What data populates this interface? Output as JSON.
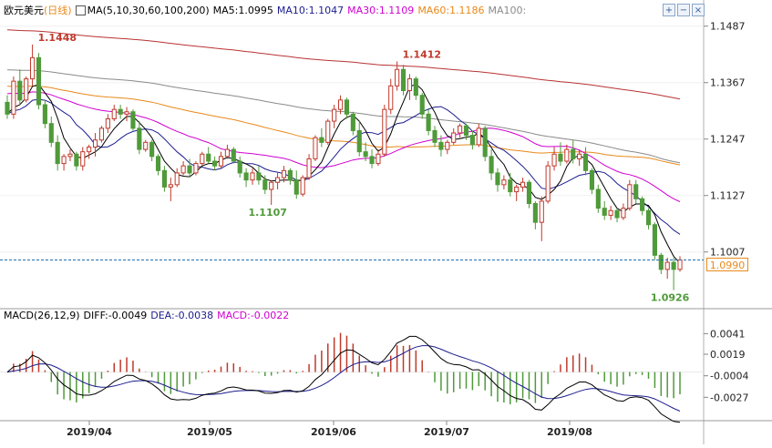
{
  "header": {
    "symbol": "欧元美元",
    "period": "(日线)",
    "ma_label": "MA(5,10,30,60,100,200)",
    "ma5": "MA5:1.0995",
    "ma10": "MA10:1.1047",
    "ma30": "MA30:1.1109",
    "ma60": "MA60:1.1186",
    "ma100": "MA100:"
  },
  "macd_header": {
    "label": "MACD(26,12,9)",
    "diff": "DIFF:-0.0049",
    "dea": "DEA:-0.0038",
    "macd": "MACD:-0.0022"
  },
  "toolbar": {
    "plus": "+",
    "minus": "−",
    "close": "×"
  },
  "current_price": "1.0990",
  "colors": {
    "up": "#c0392b",
    "down": "#4f9a3a",
    "ma5": "#000000",
    "ma10": "#1d1d8f",
    "ma30": "#d000d0",
    "ma60": "#e8891a",
    "ma100": "#8a8a8a",
    "ma200": "#b83232",
    "diff": "#000000",
    "dea": "#1d1d8f"
  },
  "chart_data": [
    {
      "type": "candlestick",
      "title": "欧元美元(日线)",
      "x_labels": [
        "2019/04",
        "2019/05",
        "2019/06",
        "2019/07",
        "2019/08"
      ],
      "y_ticks": [
        "1.1487",
        "1.1367",
        "1.1247",
        "1.1127",
        "1.1007"
      ],
      "ylim": [
        1.09,
        1.15
      ],
      "annotations": [
        {
          "label": "1.1448",
          "value": 1.1448,
          "kind": "high"
        },
        {
          "label": "1.1107",
          "value": 1.1107,
          "kind": "low"
        },
        {
          "label": "1.1412",
          "value": 1.1412,
          "kind": "high"
        },
        {
          "label": "1.0926",
          "value": 1.0926,
          "kind": "low"
        }
      ],
      "candles": [
        [
          1.1325,
          1.134,
          1.129,
          1.13
        ],
        [
          1.13,
          1.138,
          1.129,
          1.137
        ],
        [
          1.137,
          1.1395,
          1.132,
          1.133
        ],
        [
          1.133,
          1.138,
          1.1325,
          1.1375
        ],
        [
          1.1375,
          1.1448,
          1.136,
          1.142
        ],
        [
          1.142,
          1.143,
          1.131,
          1.132
        ],
        [
          1.132,
          1.133,
          1.127,
          1.128
        ],
        [
          1.128,
          1.1295,
          1.123,
          1.124
        ],
        [
          1.124,
          1.1255,
          1.118,
          1.1195
        ],
        [
          1.1195,
          1.1215,
          1.118,
          1.121
        ],
        [
          1.121,
          1.1225,
          1.12,
          1.1215
        ],
        [
          1.1215,
          1.122,
          1.118,
          1.119
        ],
        [
          1.119,
          1.123,
          1.118,
          1.122
        ],
        [
          1.122,
          1.1235,
          1.1205,
          1.123
        ],
        [
          1.123,
          1.126,
          1.121,
          1.1245
        ],
        [
          1.1245,
          1.1275,
          1.124,
          1.127
        ],
        [
          1.127,
          1.13,
          1.126,
          1.129
        ],
        [
          1.129,
          1.132,
          1.1285,
          1.131
        ],
        [
          1.131,
          1.132,
          1.129,
          1.13
        ],
        [
          1.13,
          1.1315,
          1.1285,
          1.1305
        ],
        [
          1.1305,
          1.131,
          1.1265,
          1.127
        ],
        [
          1.127,
          1.1285,
          1.1215,
          1.1225
        ],
        [
          1.1225,
          1.1245,
          1.122,
          1.124
        ],
        [
          1.124,
          1.1245,
          1.12,
          1.121
        ],
        [
          1.121,
          1.1215,
          1.117,
          1.118
        ],
        [
          1.118,
          1.119,
          1.1135,
          1.1145
        ],
        [
          1.1145,
          1.1165,
          1.1115,
          1.115
        ],
        [
          1.115,
          1.1185,
          1.1145,
          1.1175
        ],
        [
          1.1175,
          1.12,
          1.117,
          1.119
        ],
        [
          1.119,
          1.1205,
          1.1165,
          1.1175
        ],
        [
          1.1175,
          1.12,
          1.117,
          1.1195
        ],
        [
          1.1195,
          1.122,
          1.119,
          1.1215
        ],
        [
          1.1215,
          1.123,
          1.1195,
          1.12
        ],
        [
          1.12,
          1.121,
          1.118,
          1.119
        ],
        [
          1.119,
          1.122,
          1.1185,
          1.121
        ],
        [
          1.121,
          1.1235,
          1.1205,
          1.1225
        ],
        [
          1.1225,
          1.123,
          1.1195,
          1.12
        ],
        [
          1.12,
          1.121,
          1.1165,
          1.1175
        ],
        [
          1.1175,
          1.1185,
          1.1145,
          1.116
        ],
        [
          1.116,
          1.1185,
          1.115,
          1.1175
        ],
        [
          1.1175,
          1.119,
          1.115,
          1.116
        ],
        [
          1.116,
          1.117,
          1.113,
          1.114
        ],
        [
          1.114,
          1.116,
          1.1107,
          1.1155
        ],
        [
          1.1155,
          1.1175,
          1.114,
          1.1165
        ],
        [
          1.1165,
          1.119,
          1.1155,
          1.118
        ],
        [
          1.118,
          1.1185,
          1.115,
          1.116
        ],
        [
          1.116,
          1.118,
          1.112,
          1.113
        ],
        [
          1.113,
          1.117,
          1.1125,
          1.1165
        ],
        [
          1.1165,
          1.1215,
          1.116,
          1.1205
        ],
        [
          1.1205,
          1.1255,
          1.12,
          1.125
        ],
        [
          1.125,
          1.127,
          1.123,
          1.124
        ],
        [
          1.124,
          1.129,
          1.1235,
          1.1285
        ],
        [
          1.1285,
          1.132,
          1.127,
          1.131
        ],
        [
          1.131,
          1.134,
          1.13,
          1.133
        ],
        [
          1.133,
          1.1335,
          1.129,
          1.13
        ],
        [
          1.13,
          1.1305,
          1.1255,
          1.1265
        ],
        [
          1.1265,
          1.1285,
          1.121,
          1.122
        ],
        [
          1.122,
          1.124,
          1.12,
          1.121
        ],
        [
          1.121,
          1.1225,
          1.1185,
          1.1195
        ],
        [
          1.1195,
          1.1225,
          1.119,
          1.1215
        ],
        [
          1.1215,
          1.132,
          1.121,
          1.131
        ],
        [
          1.131,
          1.1375,
          1.13,
          1.136
        ],
        [
          1.136,
          1.1412,
          1.135,
          1.1395
        ],
        [
          1.1395,
          1.1405,
          1.134,
          1.135
        ],
        [
          1.135,
          1.1385,
          1.133,
          1.1375
        ],
        [
          1.1375,
          1.138,
          1.133,
          1.134
        ],
        [
          1.134,
          1.1345,
          1.129,
          1.13
        ],
        [
          1.13,
          1.131,
          1.1255,
          1.1265
        ],
        [
          1.1265,
          1.1275,
          1.123,
          1.124
        ],
        [
          1.124,
          1.1255,
          1.121,
          1.1225
        ],
        [
          1.1225,
          1.1245,
          1.1215,
          1.124
        ],
        [
          1.124,
          1.127,
          1.1235,
          1.126
        ],
        [
          1.126,
          1.128,
          1.125,
          1.1275
        ],
        [
          1.1275,
          1.128,
          1.1245,
          1.1255
        ],
        [
          1.1255,
          1.1265,
          1.1225,
          1.1235
        ],
        [
          1.1235,
          1.128,
          1.123,
          1.127
        ],
        [
          1.127,
          1.1275,
          1.12,
          1.121
        ],
        [
          1.121,
          1.1225,
          1.116,
          1.1175
        ],
        [
          1.1175,
          1.1185,
          1.1135,
          1.115
        ],
        [
          1.115,
          1.117,
          1.114,
          1.116
        ],
        [
          1.116,
          1.1175,
          1.1125,
          1.1135
        ],
        [
          1.1135,
          1.115,
          1.1115,
          1.1145
        ],
        [
          1.1145,
          1.1165,
          1.1135,
          1.1155
        ],
        [
          1.1155,
          1.116,
          1.11,
          1.111
        ],
        [
          1.111,
          1.1115,
          1.1055,
          1.107
        ],
        [
          1.107,
          1.1125,
          1.103,
          1.1115
        ],
        [
          1.1115,
          1.12,
          1.111,
          1.119
        ],
        [
          1.119,
          1.123,
          1.118,
          1.1215
        ],
        [
          1.1215,
          1.124,
          1.119,
          1.12
        ],
        [
          1.12,
          1.1235,
          1.1195,
          1.1225
        ],
        [
          1.1225,
          1.1245,
          1.1195,
          1.1205
        ],
        [
          1.1205,
          1.1225,
          1.119,
          1.1215
        ],
        [
          1.1215,
          1.123,
          1.117,
          1.118
        ],
        [
          1.118,
          1.1185,
          1.113,
          1.114
        ],
        [
          1.114,
          1.115,
          1.109,
          1.11
        ],
        [
          1.11,
          1.1115,
          1.1075,
          1.1085
        ],
        [
          1.1085,
          1.1105,
          1.1075,
          1.1095
        ],
        [
          1.1095,
          1.11,
          1.107,
          1.108
        ],
        [
          1.108,
          1.111,
          1.1075,
          1.11
        ],
        [
          1.11,
          1.116,
          1.1095,
          1.115
        ],
        [
          1.115,
          1.116,
          1.111,
          1.112
        ],
        [
          1.112,
          1.1125,
          1.1085,
          1.1095
        ],
        [
          1.1095,
          1.11,
          1.1055,
          1.1065
        ],
        [
          1.1065,
          1.107,
          1.099,
          1.1
        ],
        [
          1.1,
          1.1005,
          1.096,
          1.097
        ],
        [
          1.097,
          1.0995,
          1.095,
          1.0985
        ],
        [
          1.0985,
          1.0995,
          1.0926,
          1.097
        ],
        [
          1.097,
          1.0998,
          1.0965,
          1.099
        ]
      ],
      "series": [
        {
          "name": "MA5"
        },
        {
          "name": "MA10"
        },
        {
          "name": "MA30"
        },
        {
          "name": "MA60"
        },
        {
          "name": "MA100"
        },
        {
          "name": "MA200"
        }
      ]
    },
    {
      "type": "macd",
      "title": "MACD(26,12,9)",
      "y_ticks": [
        "0.0041",
        "0.0019",
        "-0.0004",
        "-0.0027"
      ],
      "ylim": [
        -0.005,
        0.0055
      ],
      "series": [
        {
          "name": "DIFF",
          "last": -0.0049
        },
        {
          "name": "DEA",
          "last": -0.0038
        },
        {
          "name": "MACD",
          "last": -0.0022
        }
      ]
    }
  ]
}
